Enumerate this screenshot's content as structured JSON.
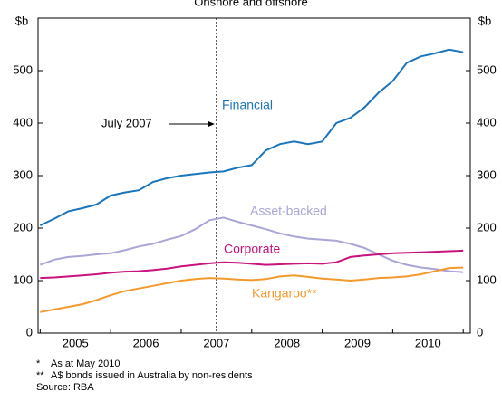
{
  "chart_data": {
    "type": "line",
    "subtitle": "Onshore and offshore",
    "y_unit": "$b",
    "xlim": [
      2004.97,
      2011.1
    ],
    "xticks": [
      2005,
      2006,
      2007,
      2008,
      2009,
      2010,
      2011
    ],
    "xtick_labels": [
      {
        "value": 2005.5,
        "label": "2005"
      },
      {
        "value": 2006.5,
        "label": "2006"
      },
      {
        "value": 2007.5,
        "label": "2007"
      },
      {
        "value": 2008.5,
        "label": "2008"
      },
      {
        "value": 2009.5,
        "label": "2009"
      },
      {
        "value": 2010.5,
        "label": "2010"
      }
    ],
    "ylim": [
      0,
      600
    ],
    "yticks": [
      0,
      100,
      200,
      300,
      400,
      500
    ],
    "y2lim": [
      0,
      600
    ],
    "y2ticks": [
      0,
      100,
      200,
      300,
      400,
      500
    ],
    "marker": {
      "x": 2007.5,
      "label": "July 2007"
    },
    "x": [
      2005.0,
      2005.2,
      2005.4,
      2005.6,
      2005.8,
      2006.0,
      2006.2,
      2006.4,
      2006.6,
      2006.8,
      2007.0,
      2007.2,
      2007.4,
      2007.6,
      2007.8,
      2008.0,
      2008.2,
      2008.4,
      2008.6,
      2008.8,
      2009.0,
      2009.2,
      2009.4,
      2009.6,
      2009.8,
      2010.0,
      2010.2,
      2010.4,
      2010.6,
      2010.8,
      2011.0
    ],
    "series": [
      {
        "name": "Financial",
        "color": "#1b75bb",
        "values": [
          205,
          218,
          232,
          238,
          245,
          262,
          268,
          272,
          288,
          295,
          300,
          303,
          306,
          308,
          315,
          320,
          348,
          360,
          365,
          360,
          365,
          400,
          410,
          430,
          458,
          480,
          515,
          527,
          533,
          540,
          535
        ]
      },
      {
        "name": "Asset-backed",
        "color": "#a9a6d6",
        "values": [
          130,
          140,
          145,
          147,
          150,
          152,
          158,
          165,
          170,
          178,
          185,
          198,
          215,
          220,
          212,
          205,
          198,
          190,
          184,
          180,
          178,
          176,
          170,
          162,
          150,
          138,
          130,
          125,
          122,
          118,
          116
        ]
      },
      {
        "name": "Corporate",
        "color": "#c8137c",
        "values": [
          105,
          106,
          108,
          110,
          112,
          115,
          117,
          118,
          120,
          123,
          127,
          130,
          133,
          135,
          134,
          132,
          130,
          131,
          132,
          133,
          132,
          135,
          145,
          148,
          150,
          152,
          153,
          154,
          155,
          156,
          157
        ]
      },
      {
        "name": "Kangaroo**",
        "color": "#f39a2e",
        "values": [
          40,
          45,
          50,
          55,
          63,
          72,
          80,
          85,
          90,
          95,
          100,
          103,
          105,
          104,
          102,
          101,
          103,
          108,
          110,
          107,
          104,
          102,
          100,
          102,
          105,
          106,
          108,
          112,
          118,
          124,
          125
        ]
      }
    ],
    "notes": [
      {
        "marker": "*",
        "text": "As at May 2010"
      },
      {
        "marker": "**",
        "text": "A$ bonds issued in Australia by non-residents"
      }
    ],
    "source": "Source: RBA"
  }
}
